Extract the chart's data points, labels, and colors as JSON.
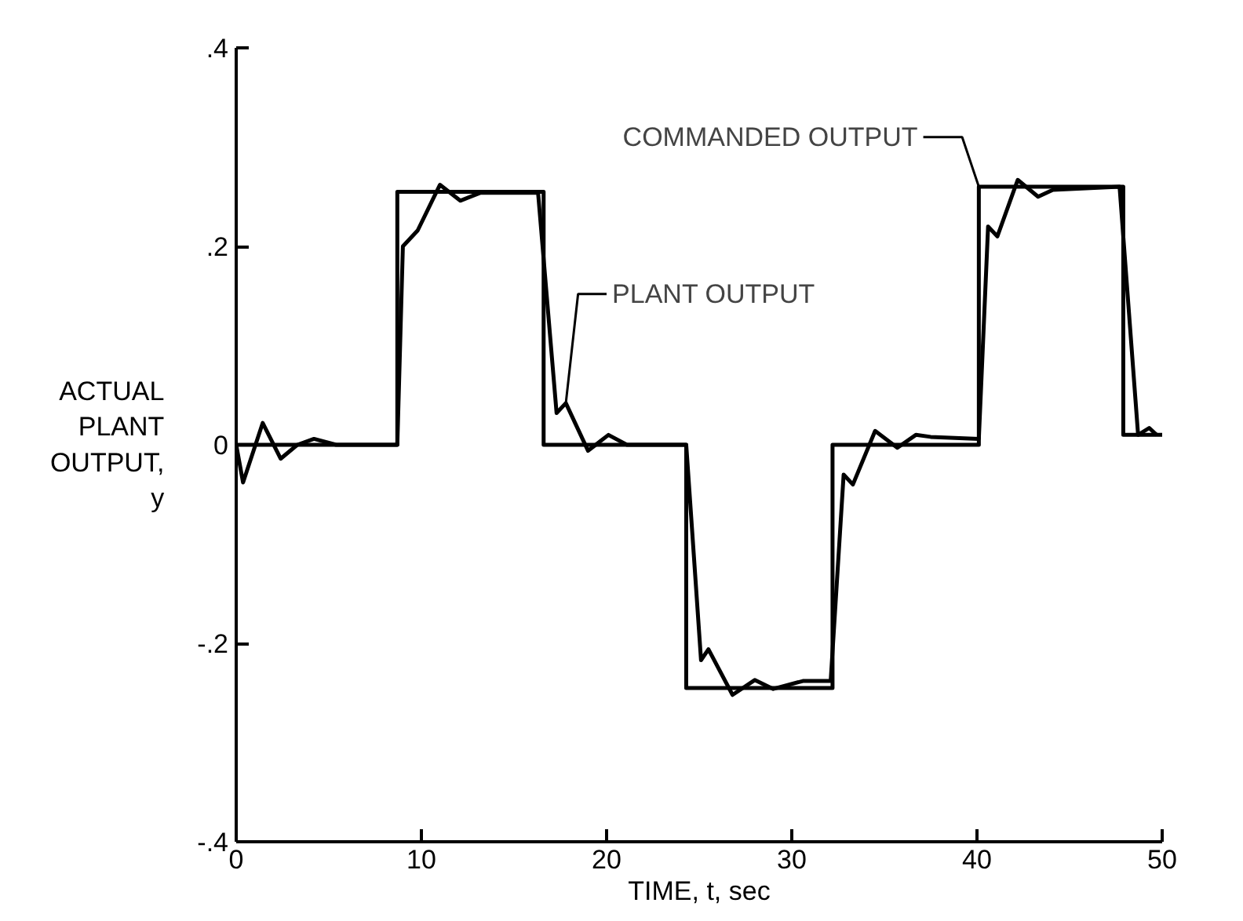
{
  "chart_data": {
    "type": "line",
    "xlabel": "TIME, t, sec",
    "ylabel": "ACTUAL PLANT OUTPUT, y",
    "xlim": [
      0,
      50
    ],
    "xticks": [
      0,
      10,
      20,
      30,
      40,
      50
    ],
    "ylim": [
      -0.4,
      0.4
    ],
    "yticks": [
      {
        "value": -0.4,
        "label": "-.4"
      },
      {
        "value": -0.2,
        "label": "-.2"
      },
      0,
      {
        "value": 0.2,
        "label": ".2"
      },
      {
        "value": 0.4,
        "label": ".4"
      }
    ],
    "grid": false,
    "marker": "none",
    "line_style": "solid",
    "series": [
      {
        "color": "#000000",
        "x": [
          0,
          8.7,
          8.7,
          16.6,
          16.6,
          24.3,
          24.3,
          32.2,
          32.2,
          40.1,
          40.1,
          47.9,
          47.9,
          50
        ],
        "values": [
          0,
          0,
          0.255,
          0.255,
          0,
          0,
          -0.245,
          -0.245,
          0,
          0,
          0.26,
          0.26,
          0.01,
          0.01
        ]
      },
      {
        "color": "#000000",
        "x": [
          0,
          0.37,
          1.43,
          2.4,
          3.3,
          4.2,
          5.4,
          8.7,
          9.0,
          9.8,
          11.0,
          12.1,
          13.2,
          16.3,
          17.3,
          17.8,
          19.0,
          20.1,
          21.1,
          24.3,
          25.1,
          25.5,
          26.8,
          28.0,
          29.0,
          30.6,
          32.1,
          32.8,
          33.3,
          34.5,
          35.7,
          36.7,
          37.5,
          40.1,
          40.6,
          41.1,
          42.2,
          43.3,
          44.1,
          47.7,
          48.7,
          49.3,
          49.7
        ],
        "values": [
          0,
          -0.038,
          0.022,
          -0.014,
          0,
          0.006,
          0,
          0,
          0.2,
          0.216,
          0.262,
          0.246,
          0.254,
          0.254,
          0.032,
          0.042,
          -0.006,
          0.01,
          0,
          0,
          -0.217,
          -0.206,
          -0.252,
          -0.237,
          -0.246,
          -0.238,
          -0.238,
          -0.03,
          -0.04,
          0.014,
          -0.003,
          0.01,
          0.008,
          0.006,
          0.22,
          0.21,
          0.267,
          0.25,
          0.257,
          0.26,
          0.01,
          0.017,
          0.01
        ]
      }
    ],
    "annotations": [
      {
        "text": "COMMANDED OUTPUT",
        "x": 40.1,
        "y": 0.26
      },
      {
        "text": "PLANT OUTPUT",
        "x": 17.8,
        "y": 0.042
      }
    ]
  }
}
